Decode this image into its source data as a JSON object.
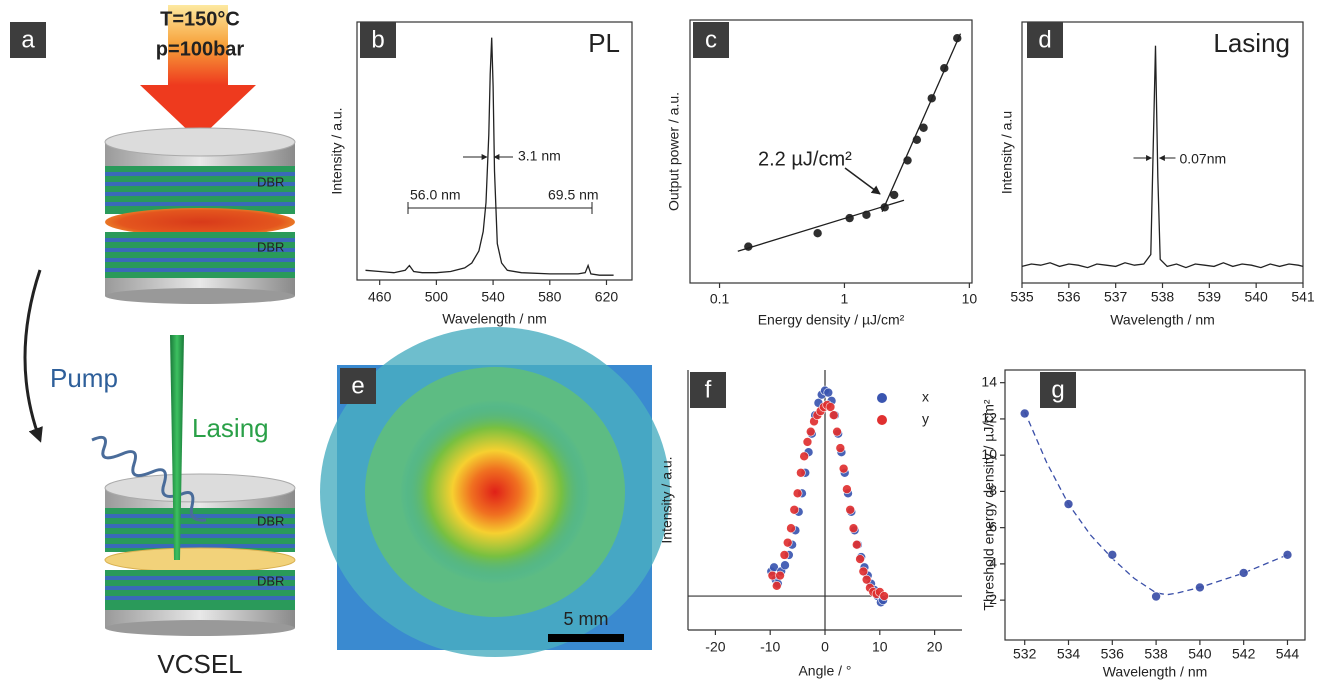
{
  "panel_a": {
    "label": "a",
    "temperature": "T=150°C",
    "pressure": "p=100bar",
    "dbr_labels": [
      "DBR",
      "DBR",
      "DBR",
      "DBR"
    ],
    "pump": "Pump",
    "lasing": "Lasing",
    "device": "VCSEL"
  },
  "panel_e": {
    "label": "e",
    "scale_bar": "5 mm"
  },
  "chart_data": [
    {
      "type": "line",
      "label": "b",
      "annotations": [
        "PL",
        "3.1 nm",
        "56.0 nm",
        "69.5 nm"
      ],
      "xlabel": "Wavelength / nm",
      "ylabel": "Intensity / a.u.",
      "xlim": [
        444,
        638
      ],
      "xticks": [
        460,
        500,
        540,
        580,
        620
      ],
      "ylim": [
        0,
        1.065
      ],
      "series": [
        {
          "color": "#222222",
          "x": [
            450,
            460,
            470,
            478,
            481,
            484,
            490,
            500,
            510,
            520,
            525,
            530,
            533,
            535,
            537,
            538,
            539,
            540,
            541,
            543,
            546,
            550,
            560,
            580,
            600,
            605,
            607,
            609,
            615,
            625
          ],
          "values": [
            0.04,
            0.035,
            0.03,
            0.04,
            0.06,
            0.035,
            0.03,
            0.03,
            0.035,
            0.05,
            0.07,
            0.12,
            0.2,
            0.32,
            0.6,
            0.85,
            1.0,
            0.8,
            0.45,
            0.15,
            0.07,
            0.04,
            0.03,
            0.025,
            0.025,
            0.03,
            0.06,
            0.025,
            0.02,
            0.02
          ]
        }
      ]
    },
    {
      "type": "scatter",
      "label": "c",
      "annotations": [
        "2.2 µJ/cm²"
      ],
      "xlabel": "Energy density / µJ/cm²",
      "ylabel": "Output power / a.u.",
      "xscale": "log",
      "yscale": "log",
      "xlim": [
        0.058,
        10.5
      ],
      "xticks": [
        0.1,
        1,
        10
      ],
      "ylim": [
        1,
        1000
      ],
      "series": [
        {
          "mode": "markers",
          "color": "#1e1e1e",
          "x": [
            0.17,
            0.61,
            1.1,
            1.5,
            2.1,
            2.5,
            3.2,
            3.8,
            4.3,
            5.0,
            6.3,
            8.0
          ],
          "values": [
            2.6,
            3.7,
            5.5,
            6.0,
            7.3,
            10.1,
            25,
            43,
            59,
            128,
            282,
            620
          ]
        },
        {
          "mode": "line",
          "color": "#1e1e1e",
          "x": [
            0.14,
            3.0
          ],
          "values": [
            2.3,
            8.8
          ]
        },
        {
          "mode": "line",
          "color": "#1e1e1e",
          "x": [
            2.0,
            8.5
          ],
          "values": [
            6.5,
            700
          ]
        }
      ]
    },
    {
      "type": "line",
      "label": "d",
      "annotations": [
        "Lasing",
        "0.07nm"
      ],
      "xlabel": "Wavelength / nm",
      "ylabel": "Intensity / a.u",
      "xlim": [
        535,
        541
      ],
      "xticks": [
        535,
        536,
        537,
        538,
        539,
        540,
        541
      ],
      "ylim": [
        0,
        1.1
      ],
      "series": [
        {
          "color": "#222222",
          "x": [
            535,
            535.2,
            535.4,
            535.6,
            535.8,
            536,
            536.2,
            536.4,
            536.6,
            536.8,
            537,
            537.2,
            537.4,
            537.6,
            537.75,
            537.8,
            537.85,
            537.9,
            537.95,
            538.1,
            538.3,
            538.5,
            538.7,
            538.9,
            539.1,
            539.3,
            539.5,
            539.7,
            539.9,
            540.1,
            540.3,
            540.5,
            540.7,
            540.9,
            541
          ],
          "values": [
            0.07,
            0.08,
            0.075,
            0.085,
            0.07,
            0.08,
            0.075,
            0.065,
            0.08,
            0.075,
            0.07,
            0.085,
            0.075,
            0.08,
            0.12,
            0.55,
            1.0,
            0.45,
            0.1,
            0.07,
            0.08,
            0.065,
            0.08,
            0.075,
            0.07,
            0.085,
            0.07,
            0.08,
            0.075,
            0.065,
            0.08,
            0.07,
            0.08,
            0.075,
            0.07
          ]
        }
      ]
    },
    {
      "type": "scatter",
      "label": "f",
      "xlabel": "Angle / °",
      "ylabel": "Intensity / a.u.",
      "legend": "top-right",
      "xlim": [
        -25,
        25
      ],
      "xticks": [
        -20,
        -10,
        0,
        10,
        20
      ],
      "ylim": [
        -0.165,
        1.1
      ],
      "series": [
        {
          "name": "x",
          "mode": "markers",
          "color": "#3a55b0",
          "x": [
            -9.8,
            -9.3,
            -9,
            -8.6,
            -8,
            -7.3,
            -6.6,
            -6,
            -5.4,
            -4.8,
            -4.2,
            -3.6,
            -3,
            -2.4,
            -1.8,
            -1.2,
            -0.6,
            0,
            0.6,
            1.2,
            1.8,
            2.4,
            3,
            3.6,
            4.2,
            4.8,
            5.4,
            6,
            6.6,
            7.2,
            7.8,
            8.4,
            9,
            9.6,
            10.2,
            10.6
          ],
          "values": [
            0.12,
            0.14,
            0.08,
            0.06,
            0.12,
            0.15,
            0.2,
            0.25,
            0.32,
            0.41,
            0.5,
            0.6,
            0.7,
            0.79,
            0.88,
            0.94,
            0.98,
            1.0,
            0.99,
            0.95,
            0.88,
            0.79,
            0.7,
            0.6,
            0.5,
            0.41,
            0.32,
            0.25,
            0.19,
            0.14,
            0.1,
            0.06,
            0.03,
            0.0,
            -0.03,
            -0.02
          ]
        },
        {
          "name": "y",
          "mode": "markers",
          "color": "#e03030",
          "x": [
            -9.6,
            -8.8,
            -8.2,
            -7.4,
            -6.8,
            -6.2,
            -5.6,
            -5,
            -4.4,
            -3.8,
            -3.2,
            -2.6,
            -2,
            -1.4,
            -0.8,
            -0.2,
            0.4,
            1,
            1.6,
            2.2,
            2.8,
            3.4,
            4,
            4.6,
            5.2,
            5.8,
            6.4,
            7,
            7.6,
            8.2,
            8.8,
            9.4,
            10,
            10.8
          ],
          "values": [
            0.1,
            0.05,
            0.1,
            0.2,
            0.26,
            0.33,
            0.42,
            0.5,
            0.6,
            0.68,
            0.75,
            0.8,
            0.85,
            0.88,
            0.9,
            0.92,
            0.93,
            0.92,
            0.88,
            0.8,
            0.72,
            0.62,
            0.52,
            0.42,
            0.33,
            0.25,
            0.18,
            0.12,
            0.08,
            0.04,
            0.02,
            0.01,
            0.02,
            0.0
          ]
        }
      ]
    },
    {
      "type": "scatter",
      "label": "g",
      "xlabel": "Wavelength / nm",
      "ylabel": "Threshold energy density / µJ/cm²",
      "xlim": [
        531.1,
        544.8
      ],
      "xticks": [
        532,
        534,
        536,
        538,
        540,
        542,
        544
      ],
      "ylim": [
        -0.2,
        14.7
      ],
      "yticks": [
        2,
        4,
        6,
        8,
        10,
        12,
        14
      ],
      "series": [
        {
          "mode": "dashed",
          "color": "#3a4fa8",
          "x": [
            532,
            533,
            534,
            535,
            536,
            537,
            538,
            538.5,
            539,
            540,
            541,
            542,
            543,
            544
          ],
          "values": [
            12.4,
            9.6,
            7.3,
            5.6,
            4.3,
            3.2,
            2.4,
            2.3,
            2.4,
            2.7,
            3.1,
            3.5,
            4.0,
            4.5
          ]
        },
        {
          "mode": "markers",
          "color": "#3a4fa8",
          "x": [
            532,
            534,
            536,
            538,
            540,
            542,
            544
          ],
          "values": [
            12.3,
            7.3,
            4.5,
            2.2,
            2.7,
            3.5,
            4.5
          ]
        }
      ]
    }
  ]
}
